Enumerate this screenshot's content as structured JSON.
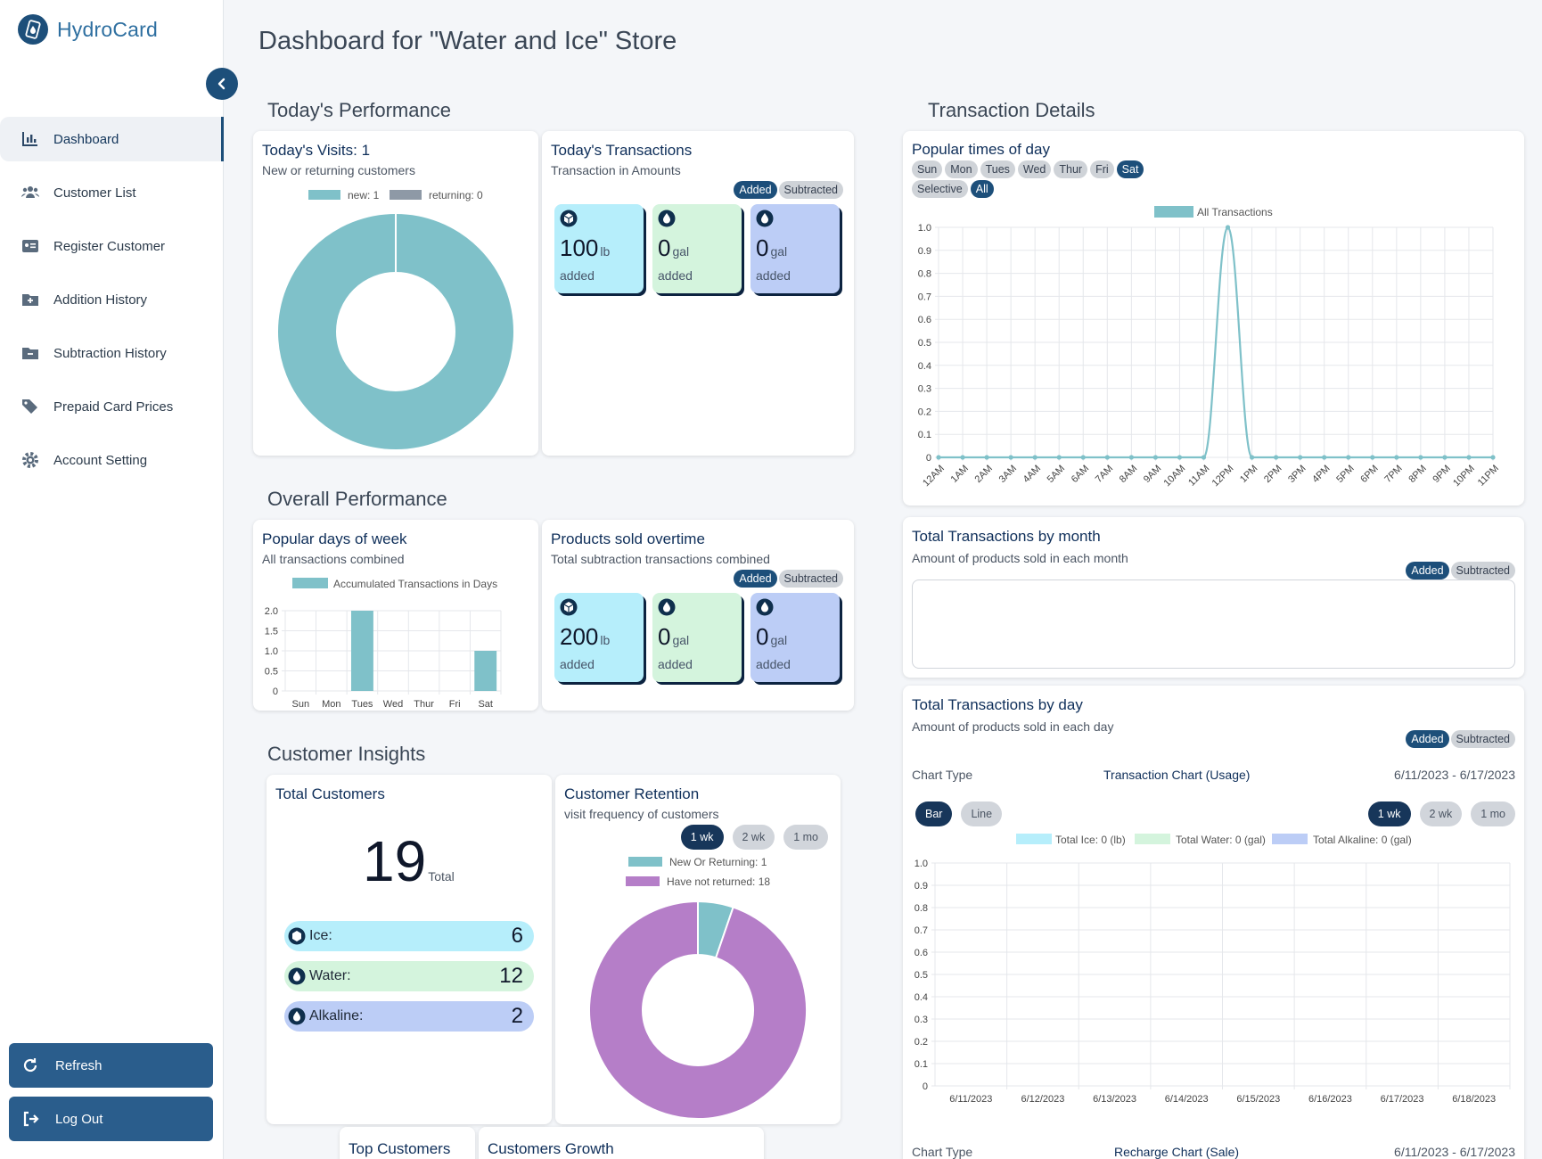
{
  "brand": {
    "name": "HydroCard"
  },
  "nav": [
    {
      "label": "Dashboard",
      "icon": "bar-chart-icon",
      "active": true
    },
    {
      "label": "Customer List",
      "icon": "users-icon"
    },
    {
      "label": "Register Customer",
      "icon": "id-card-icon"
    },
    {
      "label": "Addition History",
      "icon": "folder-plus-icon"
    },
    {
      "label": "Subtraction History",
      "icon": "folder-minus-icon"
    },
    {
      "label": "Prepaid Card Prices",
      "icon": "tags-icon"
    },
    {
      "label": "Account Setting",
      "icon": "gear-icon"
    }
  ],
  "sidebar_buttons": {
    "refresh": "Refresh",
    "logout": "Log Out"
  },
  "page": {
    "title": "Dashboard for \"Water and Ice\" Store"
  },
  "sections": {
    "today": "Today's Performance",
    "overall": "Overall Performance",
    "insights": "Customer Insights",
    "transaction": "Transaction Details"
  },
  "today_visits": {
    "title": "Today's Visits: 1",
    "subtitle": "New or returning customers",
    "legend_new": "new: 1",
    "legend_returning": "returning: 0"
  },
  "today_transactions": {
    "title": "Today's Transactions",
    "subtitle": "Transaction in Amounts",
    "toggle_added": "Added",
    "toggle_subtracted": "Subtracted",
    "tiles": [
      {
        "value": "100",
        "unit": "lb",
        "label": "added"
      },
      {
        "value": "0",
        "unit": "gal",
        "label": "added"
      },
      {
        "value": "0",
        "unit": "gal",
        "label": "added"
      }
    ]
  },
  "popular_days": {
    "title": "Popular days of week",
    "subtitle": "All transactions combined",
    "legend": "Accumulated Transactions in Days"
  },
  "products_sold": {
    "title": "Products sold overtime",
    "subtitle": "Total subtraction transactions combined",
    "toggle_added": "Added",
    "toggle_subtracted": "Subtracted",
    "tiles": [
      {
        "value": "200",
        "unit": "lb",
        "label": "added"
      },
      {
        "value": "0",
        "unit": "gal",
        "label": "added"
      },
      {
        "value": "0",
        "unit": "gal",
        "label": "added"
      }
    ]
  },
  "total_customers": {
    "title": "Total Customers",
    "count": "19",
    "count_label": "Total",
    "rows": [
      {
        "label": "Ice:",
        "value": "6"
      },
      {
        "label": "Water:",
        "value": "12"
      },
      {
        "label": "Alkaline:",
        "value": "2"
      }
    ]
  },
  "retention": {
    "title": "Customer Retention",
    "subtitle": "visit frequency of customers",
    "ranges": [
      "1 wk",
      "2 wk",
      "1 mo"
    ],
    "legend_returning": "New Or Returning: 1",
    "legend_not": "Have not returned: 18"
  },
  "bottom_cards": {
    "top_customers": "Top Customers",
    "growth": "Customers Growth"
  },
  "popular_times": {
    "title": "Popular times of day",
    "days": [
      "Sun",
      "Mon",
      "Tues",
      "Wed",
      "Thur",
      "Fri",
      "Sat"
    ],
    "selected_day": "Sat",
    "selective": "Selective",
    "all": "All",
    "legend": "All Transactions"
  },
  "by_month": {
    "title": "Total Transactions by month",
    "subtitle": "Amount of products sold in each month",
    "toggle_added": "Added",
    "toggle_subtracted": "Subtracted"
  },
  "by_day": {
    "title": "Total Transactions by day",
    "subtitle": "Amount of products sold in each day",
    "toggle_added": "Added",
    "toggle_subtracted": "Subtracted",
    "chart_type_label": "Chart Type",
    "chart_name": "Transaction Chart (Usage)",
    "date_range": "6/11/2023 - 6/17/2023",
    "type_buttons": [
      "Bar",
      "Line"
    ],
    "range_buttons": [
      "1 wk",
      "2 wk",
      "1 mo"
    ],
    "legend": [
      "Total Ice: 0 (lb)",
      "Total Water: 0 (gal)",
      "Total Alkaline: 0 (gal)"
    ],
    "next_chart_type_label": "Chart Type",
    "next_chart_name": "Recharge Chart (Sale)",
    "next_date_range": "6/11/2023 - 6/17/2023"
  },
  "colors": {
    "teal": "#7fc1c9",
    "grey": "#8e99a6",
    "purple": "#b57ec8",
    "brand": "#1d4f7a",
    "ice": "#b6eefb",
    "water": "#d4f4dd",
    "alkaline": "#bccdf6"
  },
  "chart_data": [
    {
      "type": "pie",
      "title": "Today's Visits: 1",
      "categories": [
        "new",
        "returning"
      ],
      "values": [
        1,
        0
      ],
      "donut": true
    },
    {
      "type": "bar",
      "title": "Popular days of week",
      "categories": [
        "Sun",
        "Mon",
        "Tues",
        "Wed",
        "Thur",
        "Fri",
        "Sat"
      ],
      "series": [
        {
          "name": "Accumulated Transactions in Days",
          "values": [
            0,
            0,
            2,
            0,
            0,
            0,
            1
          ]
        }
      ],
      "ylim": [
        0,
        2
      ],
      "yticks": [
        "0",
        "0.5",
        "1.0",
        "1.5",
        "2.0"
      ],
      "legend": "top"
    },
    {
      "type": "pie",
      "title": "Customer Retention",
      "categories": [
        "New Or Returning",
        "Have not returned"
      ],
      "values": [
        1,
        18
      ],
      "donut": true,
      "legend": "top"
    },
    {
      "type": "line",
      "title": "Popular times of day",
      "categories": [
        "12AM",
        "1AM",
        "2AM",
        "3AM",
        "4AM",
        "5AM",
        "6AM",
        "7AM",
        "8AM",
        "9AM",
        "10AM",
        "11AM",
        "12PM",
        "1PM",
        "2PM",
        "3PM",
        "4PM",
        "5PM",
        "6PM",
        "7PM",
        "8PM",
        "9PM",
        "10PM",
        "11PM"
      ],
      "series": [
        {
          "name": "All Transactions",
          "values": [
            0,
            0,
            0,
            0,
            0,
            0,
            0,
            0,
            0,
            0,
            0,
            0,
            1,
            0,
            0,
            0,
            0,
            0,
            0,
            0,
            0,
            0,
            0,
            0
          ]
        }
      ],
      "ylim": [
        0,
        1
      ],
      "yticks": [
        "0",
        "0.1",
        "0.2",
        "0.3",
        "0.4",
        "0.5",
        "0.6",
        "0.7",
        "0.8",
        "0.9",
        "1.0"
      ],
      "legend": "top"
    },
    {
      "type": "bar",
      "title": "Transaction Chart (Usage)",
      "categories": [
        "6/11/2023",
        "6/12/2023",
        "6/13/2023",
        "6/14/2023",
        "6/15/2023",
        "6/16/2023",
        "6/17/2023",
        "6/18/2023"
      ],
      "series": [
        {
          "name": "Total Ice: 0 (lb)",
          "values": [
            0,
            0,
            0,
            0,
            0,
            0,
            0,
            0
          ]
        },
        {
          "name": "Total Water: 0 (gal)",
          "values": [
            0,
            0,
            0,
            0,
            0,
            0,
            0,
            0
          ]
        },
        {
          "name": "Total Alkaline: 0 (gal)",
          "values": [
            0,
            0,
            0,
            0,
            0,
            0,
            0,
            0
          ]
        }
      ],
      "ylim": [
        0,
        1
      ],
      "yticks": [
        "0",
        "0.1",
        "0.2",
        "0.3",
        "0.4",
        "0.5",
        "0.6",
        "0.7",
        "0.8",
        "0.9",
        "1.0"
      ],
      "legend": "top"
    }
  ]
}
